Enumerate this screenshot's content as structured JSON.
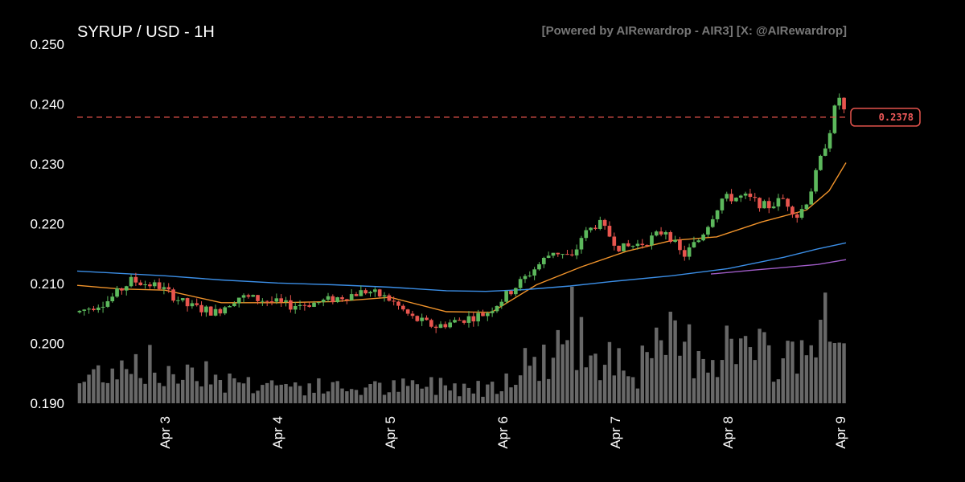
{
  "header": {
    "title": "SYRUP / USD - 1H",
    "watermark": "[Powered by AIRewardrop - AIR3] [X: @AIRewardrop]"
  },
  "colors": {
    "background": "#000000",
    "up": "#5cb85c",
    "down": "#e8554e",
    "volume": "#7a7a7a",
    "ma_short": "#f0932b",
    "ma_mid": "#3b8ee6",
    "ma_long": "#a05cc8",
    "last_price": "#e8554e"
  },
  "chart_data": {
    "type": "candlestick",
    "title": "SYRUP / USD - 1H",
    "ylim": [
      0.19,
      0.25
    ],
    "yticks": [
      "0.190",
      "0.200",
      "0.210",
      "0.220",
      "0.230",
      "0.240",
      "0.250"
    ],
    "xticks": [
      "Apr 3",
      "Apr 4",
      "Apr 5",
      "Apr 6",
      "Apr 7",
      "Apr 8",
      "Apr 9"
    ],
    "x_range_days": [
      2.22,
      9.05
    ],
    "last_price": 0.2378,
    "last_price_label": "0.2378",
    "price_path_days": [
      2.22,
      2.5,
      2.7,
      2.95,
      3.2,
      3.45,
      3.65,
      3.9,
      4.1,
      4.35,
      4.6,
      4.8,
      5.0,
      5.2,
      5.4,
      5.6,
      5.85,
      6.0,
      6.2,
      6.45,
      6.62,
      6.7,
      6.85,
      7.05,
      7.25,
      7.45,
      7.6,
      7.75,
      7.95,
      8.15,
      8.35,
      8.5,
      8.62,
      8.72,
      8.82,
      8.92,
      8.98,
      9.05
    ],
    "price_path_values": [
      0.2052,
      0.2072,
      0.2105,
      0.2095,
      0.2063,
      0.2052,
      0.2078,
      0.2072,
      0.2063,
      0.2068,
      0.2079,
      0.2088,
      0.2073,
      0.2042,
      0.2028,
      0.2038,
      0.205,
      0.2075,
      0.211,
      0.2155,
      0.2142,
      0.2178,
      0.2202,
      0.2158,
      0.2168,
      0.219,
      0.2145,
      0.2175,
      0.2242,
      0.2245,
      0.2228,
      0.2242,
      0.2212,
      0.2245,
      0.2305,
      0.2365,
      0.2418,
      0.2378
    ],
    "volume_max_days": [
      2.22,
      2.5,
      2.8,
      3.0,
      3.3,
      3.5,
      4.0,
      4.5,
      5.0,
      5.5,
      5.85,
      6.1,
      6.4,
      6.62,
      6.66,
      6.7,
      6.9,
      7.2,
      7.5,
      7.8,
      8.1,
      8.4,
      8.6,
      8.7,
      8.85,
      8.98,
      9.05
    ],
    "volume_max_values": [
      0.25,
      0.5,
      0.6,
      0.3,
      0.55,
      0.3,
      0.25,
      0.2,
      0.2,
      0.25,
      0.2,
      0.45,
      0.6,
      1.0,
      0.55,
      0.8,
      0.75,
      0.45,
      0.8,
      0.7,
      0.75,
      0.55,
      0.7,
      0.85,
      0.95,
      0.85,
      0.5
    ],
    "ma_series": [
      {
        "x": [
          2.22,
          2.6,
          3.0,
          3.5,
          4.0,
          4.5,
          5.0,
          5.5,
          5.9,
          6.3,
          6.7,
          7.1,
          7.5,
          7.9,
          8.3,
          8.7,
          8.9,
          9.05
        ],
        "values": [
          0.2097,
          0.2091,
          0.2089,
          0.2068,
          0.2068,
          0.207,
          0.2077,
          0.2053,
          0.2052,
          0.2098,
          0.2128,
          0.2154,
          0.2172,
          0.2178,
          0.2203,
          0.2223,
          0.2255,
          0.2302
        ]
      },
      {
        "x": [
          2.22,
          2.6,
          3.0,
          3.5,
          4.0,
          4.5,
          5.0,
          5.5,
          5.85,
          6.2,
          6.6,
          7.0,
          7.5,
          8.0,
          8.5,
          8.8,
          9.05
        ],
        "values": [
          0.2121,
          0.2117,
          0.2113,
          0.2106,
          0.2101,
          0.2098,
          0.2094,
          0.2088,
          0.2087,
          0.209,
          0.2096,
          0.2104,
          0.2113,
          0.2125,
          0.2144,
          0.2158,
          0.2168
        ]
      },
      {
        "x": [
          7.85,
          8.2,
          8.5,
          8.8,
          9.05
        ],
        "values": [
          0.2116,
          0.2122,
          0.2127,
          0.2132,
          0.214
        ]
      }
    ]
  }
}
